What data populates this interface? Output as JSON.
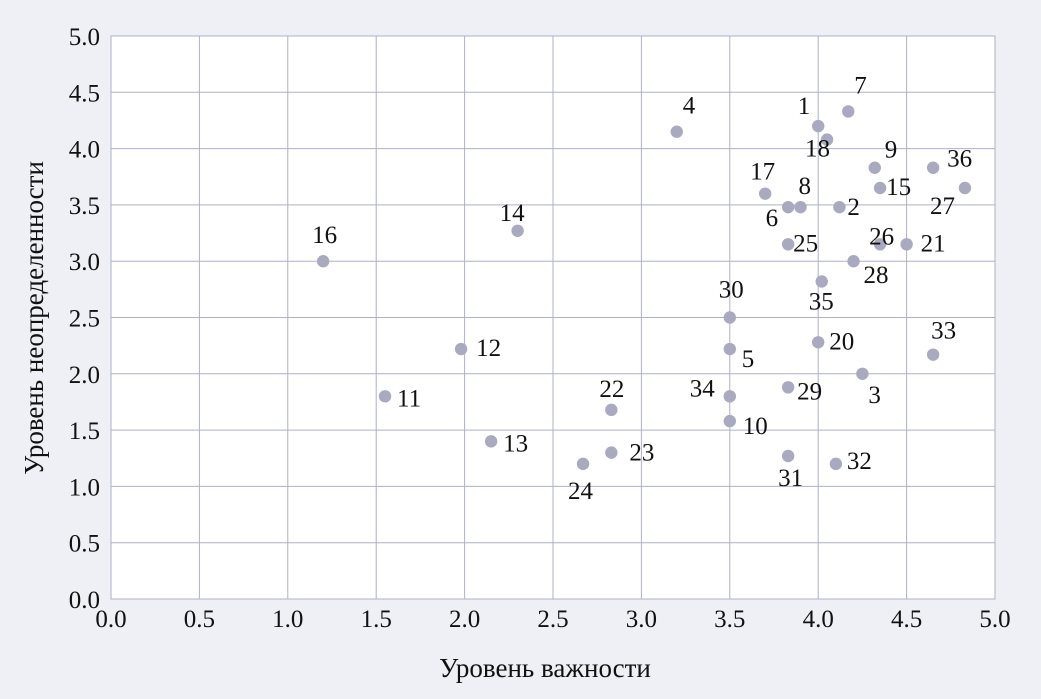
{
  "chart_data": {
    "type": "scatter",
    "title": "",
    "xlabel": "Уровень важности",
    "ylabel": "Уровень неопределенности",
    "xlim": [
      0,
      5
    ],
    "ylim": [
      0,
      5
    ],
    "x_ticks": [
      "0.0",
      "0.5",
      "1.0",
      "1.5",
      "2.0",
      "2.5",
      "3.0",
      "3.5",
      "4.0",
      "4.5",
      "5.0"
    ],
    "y_ticks": [
      "0.0",
      "0.5",
      "1.0",
      "1.5",
      "2.0",
      "2.5",
      "3.0",
      "3.5",
      "4.0",
      "4.5",
      "5.0"
    ],
    "grid": true,
    "point_color": "#a9aabf",
    "points": [
      {
        "label": "1",
        "x": 4.0,
        "y": 4.2
      },
      {
        "label": "2",
        "x": 4.12,
        "y": 3.48
      },
      {
        "label": "3",
        "x": 4.25,
        "y": 2.0
      },
      {
        "label": "4",
        "x": 3.2,
        "y": 4.15
      },
      {
        "label": "5",
        "x": 3.5,
        "y": 2.22
      },
      {
        "label": "6",
        "x": 3.83,
        "y": 3.48
      },
      {
        "label": "7",
        "x": 4.17,
        "y": 4.33
      },
      {
        "label": "8",
        "x": 3.9,
        "y": 3.48
      },
      {
        "label": "9",
        "x": 4.32,
        "y": 3.83
      },
      {
        "label": "10",
        "x": 3.5,
        "y": 1.58
      },
      {
        "label": "11",
        "x": 1.55,
        "y": 1.8
      },
      {
        "label": "12",
        "x": 1.98,
        "y": 2.22
      },
      {
        "label": "13",
        "x": 2.15,
        "y": 1.4
      },
      {
        "label": "14",
        "x": 2.3,
        "y": 3.27
      },
      {
        "label": "15",
        "x": 4.35,
        "y": 3.65
      },
      {
        "label": "16",
        "x": 1.2,
        "y": 3.0
      },
      {
        "label": "17",
        "x": 3.7,
        "y": 3.6
      },
      {
        "label": "18",
        "x": 4.05,
        "y": 4.08
      },
      {
        "label": "20",
        "x": 4.0,
        "y": 2.28
      },
      {
        "label": "21",
        "x": 4.5,
        "y": 3.15
      },
      {
        "label": "22",
        "x": 2.83,
        "y": 1.68
      },
      {
        "label": "23",
        "x": 2.83,
        "y": 1.3
      },
      {
        "label": "24",
        "x": 2.67,
        "y": 1.2
      },
      {
        "label": "25",
        "x": 3.83,
        "y": 3.15
      },
      {
        "label": "26",
        "x": 4.35,
        "y": 3.15
      },
      {
        "label": "27",
        "x": 4.83,
        "y": 3.65
      },
      {
        "label": "28",
        "x": 4.2,
        "y": 3.0
      },
      {
        "label": "29",
        "x": 3.83,
        "y": 1.88
      },
      {
        "label": "30",
        "x": 3.5,
        "y": 2.5
      },
      {
        "label": "31",
        "x": 3.83,
        "y": 1.27
      },
      {
        "label": "32",
        "x": 4.1,
        "y": 1.2
      },
      {
        "label": "33",
        "x": 4.65,
        "y": 2.17
      },
      {
        "label": "34",
        "x": 3.5,
        "y": 1.8
      },
      {
        "label": "35",
        "x": 4.02,
        "y": 2.82
      },
      {
        "label": "36",
        "x": 4.65,
        "y": 3.83
      }
    ]
  }
}
